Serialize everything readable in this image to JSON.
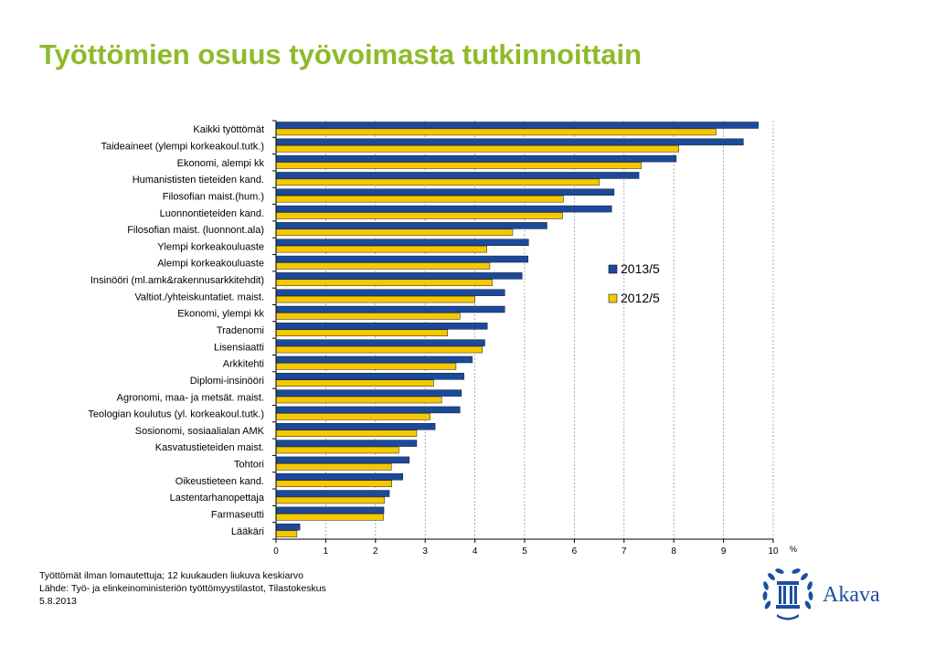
{
  "page": {
    "title": "Työttömien osuus työvoimasta tutkinnoittain"
  },
  "chart_data": {
    "type": "bar",
    "orientation": "horizontal",
    "categories": [
      "Kaikki työttömät",
      "Taideaineet (ylempi korkeakoul.tutk.)",
      "Ekonomi, alempi kk",
      "Humanististen tieteiden kand.",
      "Filosofian maist.(hum.)",
      "Luonnontieteiden kand.",
      "Filosofian maist. (luonnont.ala)",
      "Ylempi korkeakouluaste",
      "Alempi korkeakouluaste",
      "Insinööri (ml.amk&rakennusarkkitehdit)",
      "Valtiot./yhteiskuntatiet. maist.",
      "Ekonomi, ylempi kk",
      "Tradenomi",
      "Lisensiaatti",
      "Arkkitehti",
      "Diplomi-insinööri",
      "Agronomi, maa- ja metsät. maist.",
      "Teologian koulutus (yl. korkeakoul.tutk.)",
      "Sosionomi, sosiaalialan AMK",
      "Kasvatustieteiden maist.",
      "Tohtori",
      "Oikeustieteen kand.",
      "Lastentarhanopettaja",
      "Farmaseutti",
      "Lääkäri"
    ],
    "series": [
      {
        "name": "2013/5",
        "color": "#1b4a9c",
        "values": [
          9.7,
          9.4,
          8.05,
          7.3,
          6.8,
          6.75,
          5.45,
          5.08,
          5.07,
          4.95,
          4.6,
          4.6,
          4.25,
          4.2,
          3.95,
          3.78,
          3.73,
          3.7,
          3.2,
          2.83,
          2.68,
          2.55,
          2.28,
          2.17,
          0.48
        ]
      },
      {
        "name": "2012/5",
        "color": "#f5c800",
        "values": [
          8.85,
          8.1,
          7.35,
          6.5,
          5.78,
          5.76,
          4.76,
          4.24,
          4.3,
          4.35,
          4.0,
          3.7,
          3.45,
          4.15,
          3.62,
          3.17,
          3.33,
          3.1,
          2.83,
          2.47,
          2.32,
          2.33,
          2.18,
          2.16,
          0.42
        ]
      }
    ],
    "xlim": [
      0,
      10
    ],
    "xticks": [
      "0",
      "1",
      "2",
      "3",
      "4",
      "5",
      "6",
      "7",
      "8",
      "9",
      "10"
    ],
    "xunit": "%",
    "grid": "vertical dashed",
    "legend_position": "right"
  },
  "notes": {
    "line1": "Työttömät ilman lomautettuja; 12 kuukauden liukuva keskiarvo",
    "line2": "Lähde: Työ- ja elinkeinoministeriön työttömyystilastot, Tilastokeskus",
    "line3": "5.8.2013"
  },
  "logo": {
    "text": "Akava",
    "icon": "laurel-wreath-pillar-icon"
  }
}
